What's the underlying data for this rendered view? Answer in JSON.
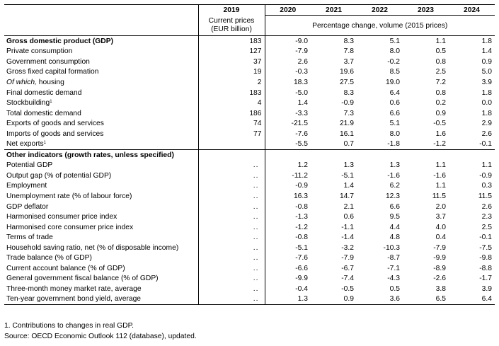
{
  "header": {
    "col_2019": "2019",
    "col_2019_sub1": "Current prices",
    "col_2019_sub2": "(EUR billion)",
    "years": [
      "2020",
      "2021",
      "2022",
      "2023",
      "2024"
    ],
    "pct_label": "Percentage change, volume (2015 prices)"
  },
  "rows": [
    {
      "label": "Gross domestic product (GDP)",
      "v2019": "183",
      "values": [
        "-9.0",
        "8.3",
        "5.1",
        "1.1",
        "1.8"
      ]
    },
    {
      "label": "Private consumption",
      "v2019": "127",
      "values": [
        "-7.9",
        "7.8",
        "8.0",
        "0.5",
        "1.4"
      ]
    },
    {
      "label": "Government consumption",
      "v2019": "37",
      "values": [
        "2.6",
        "3.7",
        "-0.2",
        "0.8",
        "0.9"
      ]
    },
    {
      "label": "Gross fixed capital formation",
      "v2019": "19",
      "values": [
        "-0.3",
        "19.6",
        "8.5",
        "2.5",
        "5.0"
      ]
    },
    {
      "label_italic": "Of which,",
      "label_rest": " housing",
      "v2019": "2",
      "values": [
        "18.3",
        "27.5",
        "19.0",
        "7.2",
        "3.9"
      ]
    },
    {
      "label": "Final domestic demand",
      "v2019": "183",
      "values": [
        "-5.0",
        "8.3",
        "6.4",
        "0.8",
        "1.8"
      ]
    },
    {
      "label": "Stockbuilding",
      "sup": "1",
      "v2019": "4",
      "values": [
        "1.4",
        "-0.9",
        "0.6",
        "0.2",
        "0.0"
      ]
    },
    {
      "label": "Total domestic demand",
      "v2019": "186",
      "values": [
        "-3.3",
        "7.3",
        "6.6",
        "0.9",
        "1.8"
      ]
    },
    {
      "label": "Exports of goods and services",
      "v2019": "74",
      "values": [
        "-21.5",
        "21.9",
        "5.1",
        "-0.5",
        "2.9"
      ]
    },
    {
      "label": "Imports of goods and services",
      "v2019": "77",
      "values": [
        "-7.6",
        "16.1",
        "8.0",
        "1.6",
        "2.6"
      ]
    },
    {
      "label": "Net exports",
      "sup": "1",
      "v2019": "",
      "values": [
        "-5.5",
        "0.7",
        "-1.8",
        "-1.2",
        "-0.1"
      ]
    }
  ],
  "other_section_title": "Other indicators (growth rates, unless specified)",
  "other_rows": [
    {
      "label": "Potential GDP",
      "v2019": "..",
      "values": [
        "1.2",
        "1.3",
        "1.3",
        "1.1",
        "1.1"
      ]
    },
    {
      "label": "Output gap (% of potential GDP)",
      "v2019": "..",
      "values": [
        "-11.2",
        "-5.1",
        "-1.6",
        "-1.6",
        "-0.9"
      ]
    },
    {
      "label": "Employment",
      "v2019": "..",
      "values": [
        "-0.9",
        "1.4",
        "6.2",
        "1.1",
        "0.3"
      ]
    },
    {
      "label": "Unemployment rate (% of labour force)",
      "v2019": "..",
      "values": [
        "16.3",
        "14.7",
        "12.3",
        "11.5",
        "11.5"
      ]
    },
    {
      "label": "GDP deflator",
      "v2019": "..",
      "values": [
        "-0.8",
        "2.1",
        "6.6",
        "2.0",
        "2.6"
      ]
    },
    {
      "label": "Harmonised consumer price index",
      "v2019": "..",
      "values": [
        "-1.3",
        "0.6",
        "9.5",
        "3.7",
        "2.3"
      ]
    },
    {
      "label": "Harmonised core consumer price index",
      "v2019": "..",
      "values": [
        "-1.2",
        "-1.1",
        "4.4",
        "4.0",
        "2.5"
      ]
    },
    {
      "label": "Terms of trade",
      "v2019": "..",
      "values": [
        "-0.8",
        "-1.4",
        "4.8",
        "0.4",
        "-0.1"
      ]
    },
    {
      "label": "Household saving ratio, net (% of disposable income)",
      "v2019": "..",
      "values": [
        "-5.1",
        "-3.2",
        "-10.3",
        "-7.9",
        "-7.5"
      ]
    },
    {
      "label": "Trade balance (% of GDP)",
      "v2019": "..",
      "values": [
        "-7.6",
        "-7.9",
        "-8.7",
        "-9.9",
        "-9.8"
      ]
    },
    {
      "label": "Current account balance (% of GDP)",
      "v2019": "..",
      "values": [
        "-6.6",
        "-6.7",
        "-7.1",
        "-8.9",
        "-8.8"
      ]
    },
    {
      "label": "General government fiscal balance (% of GDP)",
      "v2019": "..",
      "values": [
        "-9.9",
        "-7.4",
        "-4.3",
        "-2.6",
        "-1.7"
      ]
    },
    {
      "label": "Three-month money market rate, average",
      "v2019": "..",
      "values": [
        "-0.4",
        "-0.5",
        "0.5",
        "3.8",
        "3.9"
      ]
    },
    {
      "label": "Ten-year government bond yield, average",
      "v2019": "..",
      "values": [
        "1.3",
        "0.9",
        "3.6",
        "6.5",
        "6.4"
      ]
    }
  ],
  "notes": {
    "note1": "1. Contributions to changes in real GDP.",
    "source": "Source: OECD Economic Outlook 112 (database), updated."
  }
}
